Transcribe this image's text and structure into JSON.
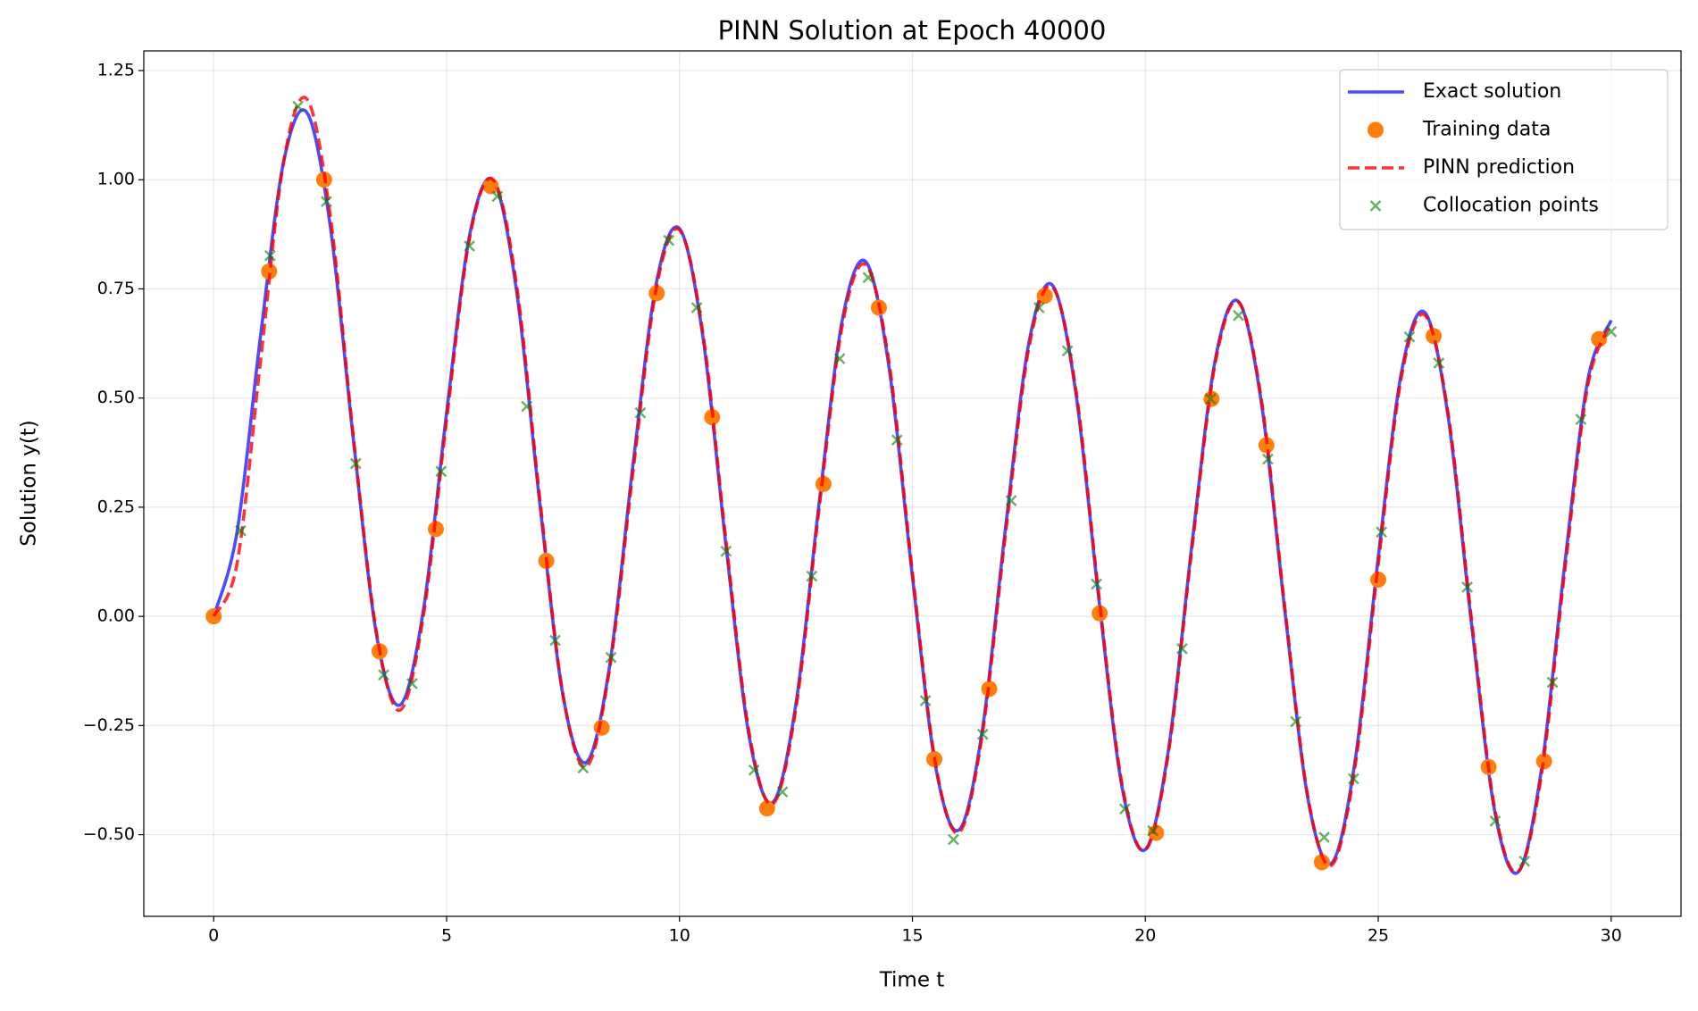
{
  "chart_data": {
    "type": "line",
    "title": "PINN Solution at Epoch 40000",
    "x_label": "Time t",
    "y_label": "Solution y(t)",
    "xlim": [
      -1.5,
      31.5
    ],
    "ylim": [
      -0.687,
      1.295
    ],
    "xticks": [
      0,
      5,
      10,
      15,
      20,
      25,
      30
    ],
    "yticks": [
      {
        "value": -0.5,
        "label": "−0.50"
      },
      {
        "value": -0.25,
        "label": "−0.25"
      },
      {
        "value": 0,
        "label": "0.00"
      },
      {
        "value": 0.25,
        "label": "0.25"
      },
      {
        "value": 0.5,
        "label": "0.50"
      },
      {
        "value": 0.75,
        "label": "0.75"
      },
      {
        "value": 1,
        "label": "1.00"
      },
      {
        "value": 1.25,
        "label": "1.25"
      }
    ],
    "grid": true,
    "legend": "upper right",
    "series": [
      {
        "name": "Exact solution",
        "type": "line",
        "linestyle": "solid",
        "color": "#0000ff",
        "opacity": 0.7,
        "x": [
          0,
          0.5,
          1,
          1.5,
          2,
          2.5,
          3,
          3.5,
          4,
          4.5,
          5,
          5.5,
          6,
          6.5,
          7,
          7.5,
          8,
          8.5,
          9,
          9.5,
          10,
          10.5,
          11,
          11.5,
          12,
          12.5,
          13,
          13.5,
          14,
          14.5,
          15,
          15.5,
          16,
          16.5,
          17,
          17.5,
          18,
          18.5,
          19,
          19.5,
          20,
          20.5,
          21,
          21.5,
          22,
          22.5,
          23,
          23.5,
          24,
          24.5,
          25,
          25.5,
          26,
          26.5,
          27,
          27.5,
          28,
          28.5,
          29,
          29.5,
          30
        ],
        "values": [
          0,
          0.192,
          0.637,
          1.04,
          1.154,
          0.896,
          0.404,
          -0.045,
          -0.203,
          0.013,
          0.466,
          0.876,
          0.998,
          0.747,
          0.26,
          -0.182,
          -0.334,
          -0.113,
          0.346,
          0.762,
          0.888,
          0.642,
          0.16,
          -0.278,
          -0.426,
          -0.2,
          0.262,
          0.682,
          0.812,
          0.569,
          0.091,
          -0.345,
          -0.489,
          -0.261,
          0.204,
          0.626,
          0.759,
          0.518,
          0.042,
          -0.391,
          -0.534,
          -0.303,
          0.164,
          0.587,
          0.721,
          0.483,
          0.008,
          -0.423,
          -0.565,
          -0.333,
          0.135,
          0.56,
          0.696,
          0.458,
          -0.015,
          -0.446,
          -0.586,
          -0.353,
          0.116,
          0.542,
          0.678
        ]
      },
      {
        "name": "Training data",
        "type": "scatter",
        "marker": "o",
        "color": "#ff7f0e",
        "opacity": 1,
        "x": [
          0,
          1.19,
          2.37,
          3.56,
          4.77,
          5.95,
          7.14,
          8.33,
          9.51,
          10.7,
          11.88,
          13.09,
          14.28,
          15.47,
          16.65,
          17.84,
          19.02,
          20.23,
          21.42,
          22.6,
          23.79,
          25,
          26.19,
          27.37,
          28.56,
          29.74
        ],
        "values": [
          0,
          0.79,
          1,
          -0.08,
          0.2,
          0.985,
          0.127,
          -0.255,
          0.74,
          0.456,
          -0.44,
          0.303,
          0.707,
          -0.327,
          -0.166,
          0.734,
          0.007,
          -0.496,
          0.498,
          0.392,
          -0.563,
          0.084,
          0.642,
          -0.345,
          -0.332,
          0.635
        ]
      },
      {
        "name": "PINN prediction",
        "type": "line",
        "linestyle": "dashed",
        "color": "#ff0000",
        "opacity": 0.8,
        "x": [
          0,
          0.5,
          1,
          1.5,
          2,
          2.5,
          3,
          3.5,
          4,
          4.5,
          5,
          5.5,
          6,
          6.5,
          7,
          7.5,
          8,
          8.5,
          9,
          9.5,
          10,
          10.5,
          11,
          11.5,
          12,
          12.5,
          13,
          13.5,
          14,
          14.5,
          15,
          15.5,
          16,
          16.5,
          17,
          17.5,
          18,
          18.5,
          19,
          19.5,
          20,
          20.5,
          21,
          21.5,
          22,
          22.5,
          23,
          23.5,
          24,
          24.5,
          25,
          25.5,
          26,
          26.5,
          27,
          27.5,
          28,
          28.5,
          29,
          29.5,
          30
        ],
        "values": [
          0,
          0.12,
          0.58,
          1.04,
          1.185,
          0.92,
          0.41,
          -0.04,
          -0.215,
          0,
          0.45,
          0.87,
          1.0,
          0.76,
          0.27,
          -0.18,
          -0.345,
          -0.12,
          0.33,
          0.75,
          0.885,
          0.65,
          0.17,
          -0.27,
          -0.43,
          -0.21,
          0.25,
          0.67,
          0.805,
          0.58,
          0.1,
          -0.34,
          -0.495,
          -0.27,
          0.19,
          0.615,
          0.755,
          0.525,
          0.05,
          -0.385,
          -0.535,
          -0.31,
          0.155,
          0.58,
          0.72,
          0.49,
          0.015,
          -0.42,
          -0.57,
          -0.345,
          0.12,
          0.55,
          0.69,
          0.465,
          -0.005,
          -0.44,
          -0.585,
          -0.365,
          0.1,
          0.53,
          0.67
        ]
      },
      {
        "name": "Collocation points",
        "type": "scatter",
        "marker": "x",
        "color": "#008000",
        "opacity": 0.6,
        "x": [
          0.58,
          1.21,
          1.81,
          2.42,
          3.05,
          3.65,
          4.26,
          4.88,
          5.49,
          6.09,
          6.72,
          7.33,
          7.93,
          8.53,
          9.16,
          9.77,
          10.37,
          11,
          11.6,
          12.21,
          12.84,
          13.44,
          14.05,
          14.67,
          15.28,
          15.88,
          16.51,
          17.12,
          17.72,
          18.33,
          18.95,
          19.56,
          20.16,
          20.79,
          21.4,
          22,
          22.63,
          23.23,
          23.84,
          24.47,
          25.07,
          25.67,
          26.3,
          26.91,
          27.51,
          28.14,
          28.74,
          29.35,
          30
        ],
        "values": [
          0.196,
          0.826,
          1.168,
          0.95,
          0.35,
          -0.134,
          -0.154,
          0.332,
          0.848,
          0.962,
          0.481,
          -0.055,
          -0.347,
          -0.094,
          0.466,
          0.861,
          0.707,
          0.149,
          -0.352,
          -0.402,
          0.092,
          0.59,
          0.776,
          0.404,
          -0.193,
          -0.511,
          -0.27,
          0.265,
          0.707,
          0.608,
          0.074,
          -0.441,
          -0.491,
          -0.074,
          0.498,
          0.689,
          0.36,
          -0.241,
          -0.506,
          -0.372,
          0.193,
          0.64,
          0.58,
          0.067,
          -0.469,
          -0.561,
          -0.151,
          0.451,
          0.652
        ]
      }
    ]
  }
}
